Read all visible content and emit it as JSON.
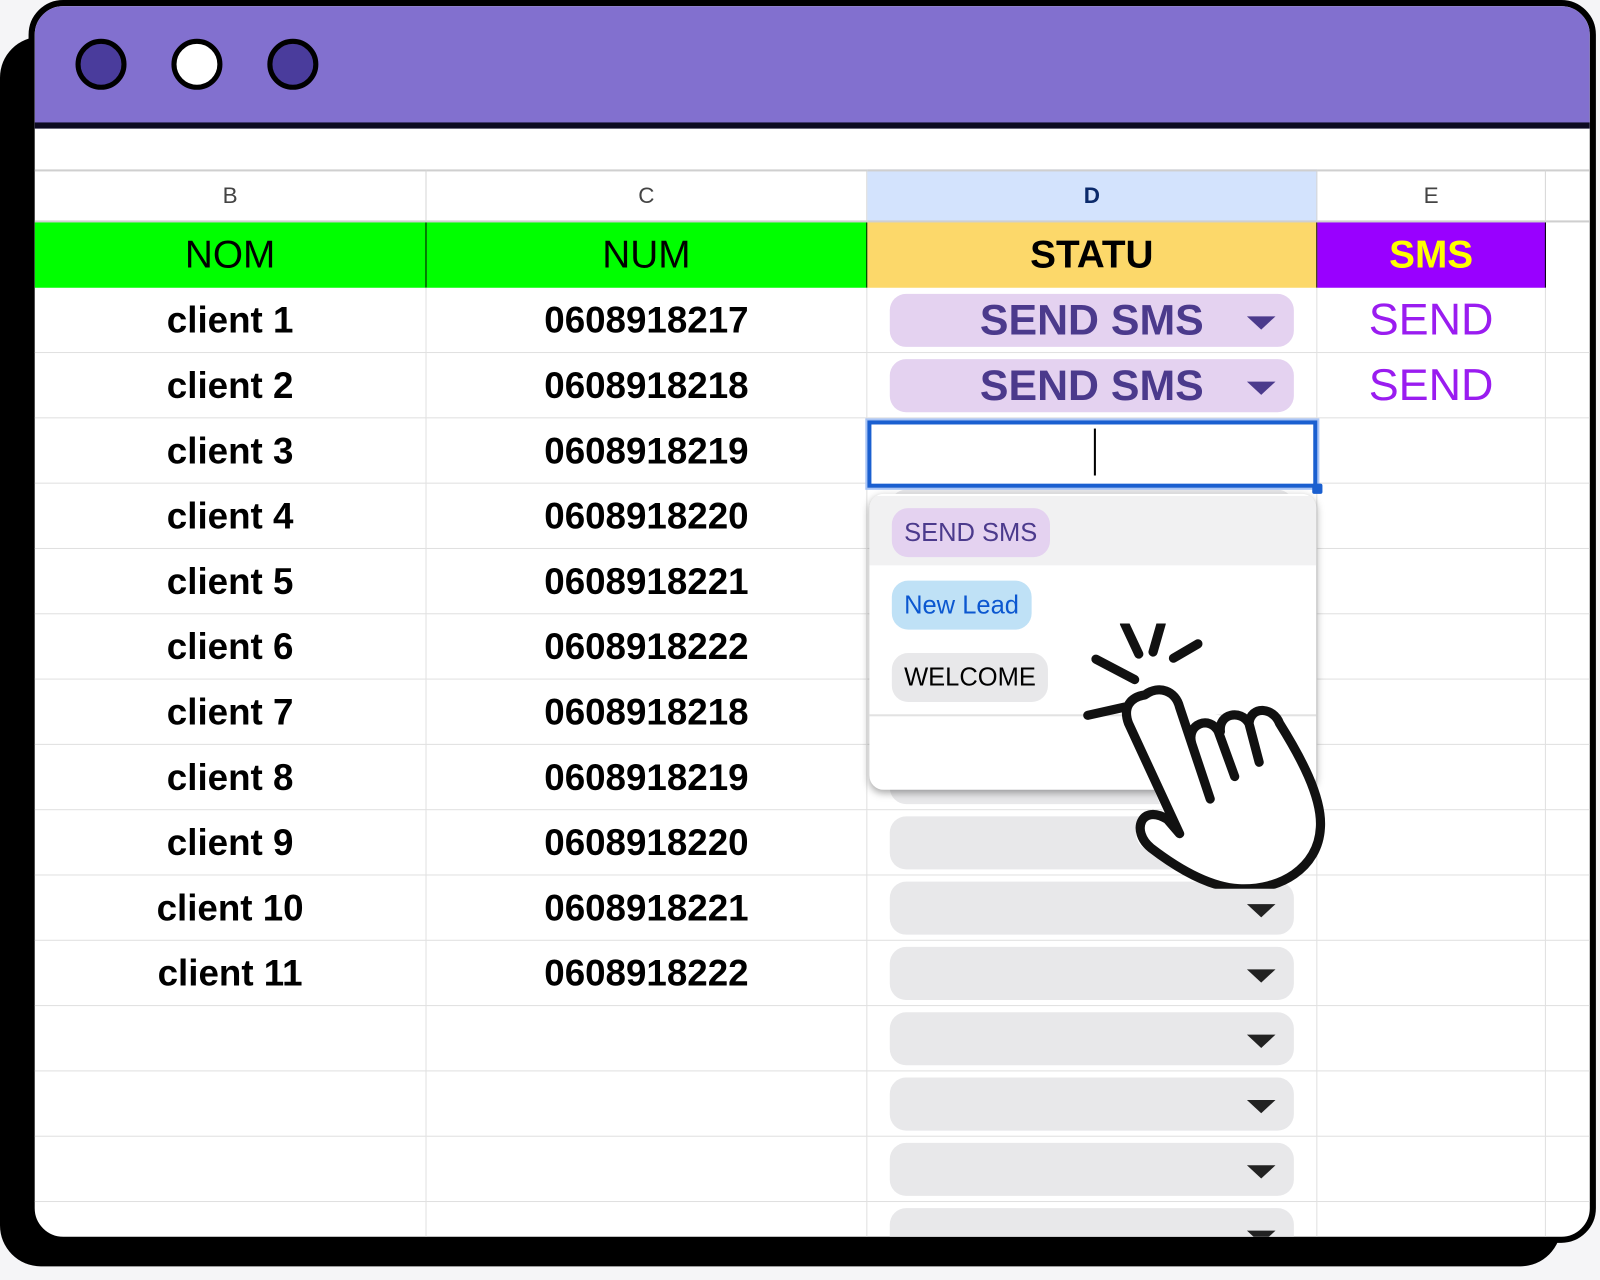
{
  "window": {
    "controls": [
      "close",
      "minimize",
      "maximize"
    ],
    "title_bar_color": "#8270cf"
  },
  "columns": [
    {
      "letter": "B",
      "header": "NOM",
      "header_bg": "#00ff00",
      "header_color": "#000000"
    },
    {
      "letter": "C",
      "header": "NUM",
      "header_bg": "#00ff00",
      "header_color": "#000000"
    },
    {
      "letter": "D",
      "header": "STATU",
      "header_bg": "#fcd86a",
      "header_color": "#000000",
      "selected": true
    },
    {
      "letter": "E",
      "header": "SMS",
      "header_bg": "#9900ff",
      "header_color": "#ffff00"
    }
  ],
  "rows": [
    {
      "nom": "client 1",
      "num": "0608918217",
      "statu": "SEND SMS",
      "sms": "SEND"
    },
    {
      "nom": "client 2",
      "num": "0608918218",
      "statu": "SEND SMS",
      "sms": "SEND"
    },
    {
      "nom": "client 3",
      "num": "0608918219",
      "statu": "",
      "sms": "",
      "editing": true
    },
    {
      "nom": "client 4",
      "num": "0608918220",
      "statu": "",
      "sms": ""
    },
    {
      "nom": "client 5",
      "num": "0608918221",
      "statu": "",
      "sms": ""
    },
    {
      "nom": "client 6",
      "num": "0608918222",
      "statu": "",
      "sms": ""
    },
    {
      "nom": "client 7",
      "num": "0608918218",
      "statu": "",
      "sms": ""
    },
    {
      "nom": "client 8",
      "num": "0608918219",
      "statu": "",
      "sms": ""
    },
    {
      "nom": "client 9",
      "num": "0608918220",
      "statu": "",
      "sms": ""
    },
    {
      "nom": "client 10",
      "num": "0608918221",
      "statu": "",
      "sms": ""
    },
    {
      "nom": "client 11",
      "num": "0608918222",
      "statu": "",
      "sms": ""
    },
    {
      "nom": "",
      "num": "",
      "statu": "",
      "sms": ""
    },
    {
      "nom": "",
      "num": "",
      "statu": "",
      "sms": ""
    },
    {
      "nom": "",
      "num": "",
      "statu": "",
      "sms": ""
    },
    {
      "nom": "",
      "num": "",
      "statu": "",
      "sms": ""
    }
  ],
  "dropdown": {
    "options": [
      {
        "label": "SEND SMS",
        "bg": "#e4d2f0",
        "color": "#4b3a8c",
        "highlighted": true
      },
      {
        "label": "New Lead",
        "bg": "#bfe1f6",
        "color": "#0b57d0"
      },
      {
        "label": "WELCOME",
        "bg": "#e8e8ea",
        "color": "#000000"
      }
    ],
    "edit_icon": "pencil-icon"
  },
  "cursor": "pointing-hand-click-icon"
}
